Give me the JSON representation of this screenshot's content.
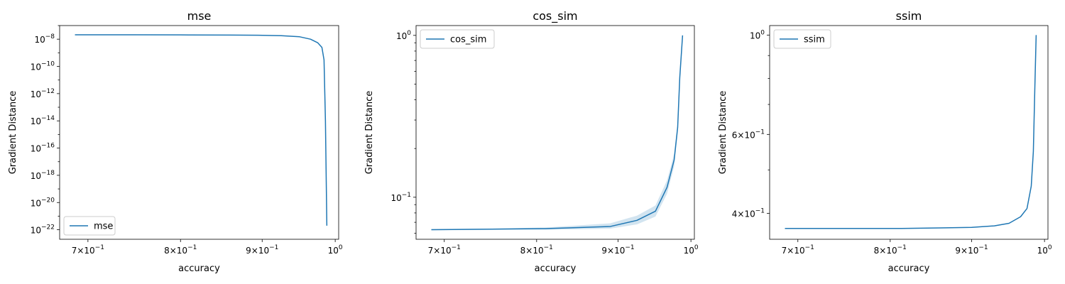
{
  "chart_data": [
    {
      "type": "line",
      "title": "mse",
      "xlabel": "accuracy",
      "ylabel": "Gradient Distance",
      "xscale": "log",
      "yscale": "log",
      "xlim": [
        0.672,
        1.005
      ],
      "ylim": [
        2e-23,
        1e-07
      ],
      "color": "#1f77b4",
      "legend": {
        "placement": "bottom-left",
        "entries": [
          "mse"
        ]
      },
      "xticks": [
        {
          "value": 0.7,
          "base": "7×10",
          "exp": "−1"
        },
        {
          "value": 0.8,
          "base": "8×10",
          "exp": "−1"
        },
        {
          "value": 0.9,
          "base": "9×10",
          "exp": "−1"
        },
        {
          "value": 1.0,
          "base": "10",
          "exp": "0"
        }
      ],
      "yticks": [
        {
          "value": 1e-08,
          "base": "10",
          "exp": "−8"
        },
        {
          "value": 1e-10,
          "base": "10",
          "exp": "−10"
        },
        {
          "value": 1e-12,
          "base": "10",
          "exp": "−12"
        },
        {
          "value": 1e-14,
          "base": "10",
          "exp": "−14"
        },
        {
          "value": 1e-16,
          "base": "10",
          "exp": "−16"
        },
        {
          "value": 1e-18,
          "base": "10",
          "exp": "−18"
        },
        {
          "value": 1e-20,
          "base": "10",
          "exp": "−20"
        },
        {
          "value": 1e-22,
          "base": "10",
          "exp": "−22"
        }
      ],
      "series": [
        {
          "name": "mse",
          "x": [
            0.687,
            0.75,
            0.81,
            0.86,
            0.895,
            0.925,
            0.95,
            0.965,
            0.975,
            0.981,
            0.984,
            0.986,
            0.988
          ],
          "y": [
            2.1e-08,
            2.1e-08,
            2.05e-08,
            2e-08,
            1.95e-08,
            1.8e-08,
            1.5e-08,
            1e-08,
            5.5e-09,
            2.5e-09,
            3e-10,
            1e-14,
            2e-22
          ]
        }
      ]
    },
    {
      "type": "line",
      "title": "cos_sim",
      "xlabel": "accuracy",
      "ylabel": "Gradient Distance",
      "xscale": "log",
      "yscale": "log",
      "xlim": [
        0.672,
        1.005
      ],
      "ylim": [
        0.055,
        1.15
      ],
      "color": "#1f77b4",
      "legend": {
        "placement": "top-left",
        "entries": [
          "cos_sim"
        ]
      },
      "xticks": [
        {
          "value": 0.7,
          "base": "7×10",
          "exp": "−1"
        },
        {
          "value": 0.8,
          "base": "8×10",
          "exp": "−1"
        },
        {
          "value": 0.9,
          "base": "9×10",
          "exp": "−1"
        },
        {
          "value": 1.0,
          "base": "10",
          "exp": "0"
        }
      ],
      "yticks": [
        {
          "value": 1.0,
          "base": "10",
          "exp": "0"
        },
        {
          "value": 0.1,
          "base": "10",
          "exp": "−1"
        }
      ],
      "series": [
        {
          "name": "cos_sim",
          "x": [
            0.687,
            0.75,
            0.81,
            0.85,
            0.89,
            0.925,
            0.95,
            0.966,
            0.976,
            0.981,
            0.984,
            0.988
          ],
          "y": [
            0.063,
            0.0635,
            0.064,
            0.065,
            0.066,
            0.072,
            0.082,
            0.115,
            0.17,
            0.27,
            0.55,
            1.0
          ],
          "band_lower": [
            0.0625,
            0.063,
            0.063,
            0.0635,
            0.064,
            0.068,
            0.076,
            0.105,
            0.155,
            0.25,
            0.52,
            1.0
          ],
          "band_upper": [
            0.0635,
            0.064,
            0.065,
            0.067,
            0.069,
            0.077,
            0.089,
            0.127,
            0.185,
            0.29,
            0.58,
            1.0
          ]
        }
      ]
    },
    {
      "type": "line",
      "title": "ssim",
      "xlabel": "accuracy",
      "ylabel": "Gradient Distance",
      "xscale": "log",
      "yscale": "log",
      "xlim": [
        0.672,
        1.005
      ],
      "ylim": [
        0.35,
        1.05
      ],
      "color": "#1f77b4",
      "legend": {
        "placement": "top-left",
        "entries": [
          "ssim"
        ]
      },
      "xticks": [
        {
          "value": 0.7,
          "base": "7×10",
          "exp": "−1"
        },
        {
          "value": 0.8,
          "base": "8×10",
          "exp": "−1"
        },
        {
          "value": 0.9,
          "base": "9×10",
          "exp": "−1"
        },
        {
          "value": 1.0,
          "base": "10",
          "exp": "0"
        }
      ],
      "yticks": [
        {
          "value": 1.0,
          "base": "10",
          "exp": "0"
        },
        {
          "value": 0.6,
          "base": "6×10",
          "exp": "−1"
        },
        {
          "value": 0.4,
          "base": "4×10",
          "exp": "−1"
        }
      ],
      "series": [
        {
          "name": "ssim",
          "x": [
            0.687,
            0.75,
            0.81,
            0.86,
            0.9,
            0.93,
            0.95,
            0.966,
            0.975,
            0.981,
            0.984,
            0.986,
            0.988
          ],
          "y": [
            0.37,
            0.37,
            0.37,
            0.371,
            0.372,
            0.375,
            0.38,
            0.393,
            0.41,
            0.46,
            0.55,
            0.75,
            1.0
          ]
        }
      ]
    }
  ]
}
